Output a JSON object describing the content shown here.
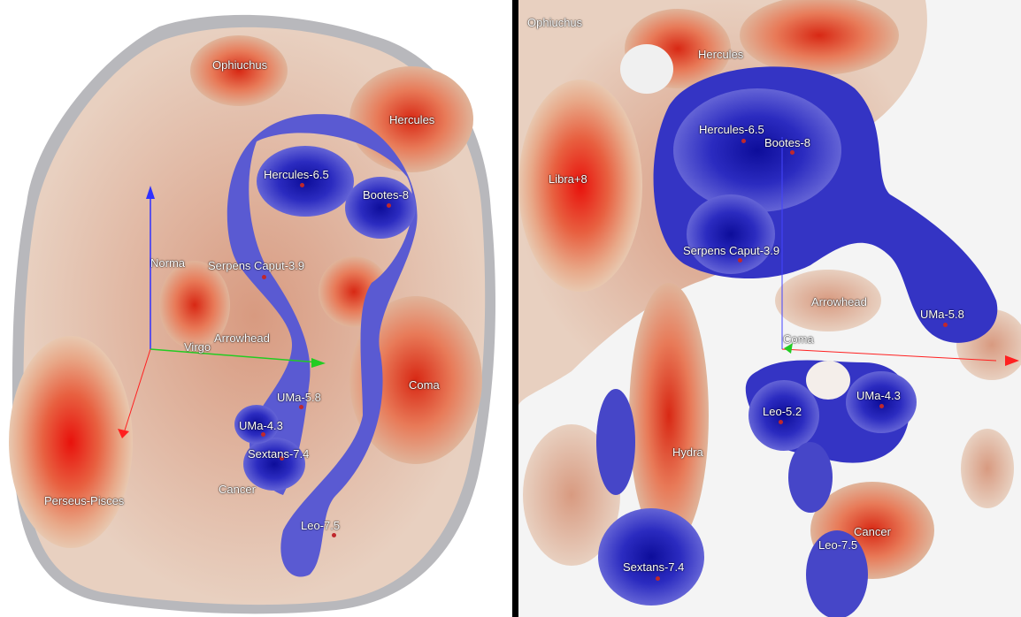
{
  "left_panel": {
    "labels": [
      "Ophiuchus",
      "Hercules",
      "Hercules-6.5",
      "Bootes-8",
      "Norma",
      "Serpens Caput-3.9",
      "Virgo",
      "Arrowhead",
      "UMa-5.8",
      "Coma",
      "UMa-4.3",
      "Sextans-7.4",
      "Cancer",
      "Perseus-Pisces",
      "Leo-7.5"
    ]
  },
  "right_panel": {
    "labels": [
      "Ophiuchus",
      "Hercules",
      "Hercules-6.5",
      "Bootes-8",
      "Libra+8",
      "Serpens Caput-3.9",
      "Arrowhead",
      "UMa-5.8",
      "Coma",
      "Leo-5.2",
      "UMa-4.3",
      "Hydra",
      "Cancer",
      "Leo-7.5",
      "Sextans-7.4"
    ]
  },
  "colors": {
    "overdensity": "#e8553a",
    "underdensity": "#3b3fd0",
    "neutral": "#e8e8ea",
    "x_axis": "#ff2020",
    "y_axis": "#3030ff",
    "z_axis": "#22cc22"
  }
}
